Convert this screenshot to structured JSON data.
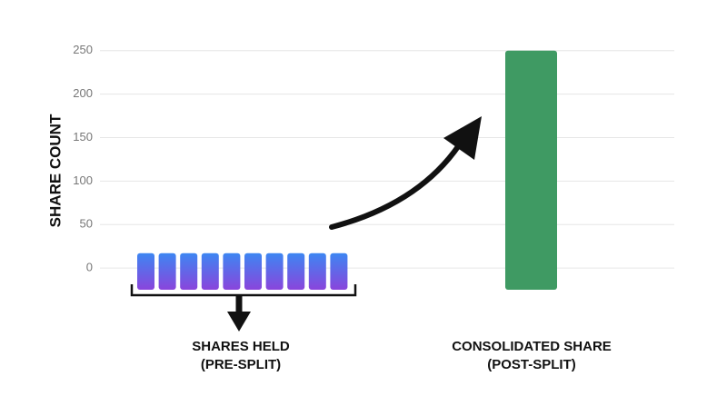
{
  "chart_data": {
    "type": "bar",
    "y_label": "SHARE COUNT",
    "categories": [
      [
        "SHARES HELD",
        "(PRE-SPLIT)"
      ],
      [
        "CONSOLIDATED SHARE",
        "(POST-SPLIT)"
      ]
    ],
    "values": [
      [
        17,
        17,
        17,
        17,
        17,
        17,
        17,
        17,
        17,
        17
      ],
      [
        250
      ]
    ],
    "colors": [
      [
        "#3d86f2",
        "#8a45dc"
      ],
      [
        "#3f9a63"
      ]
    ],
    "ylim": [
      -25,
      255
    ],
    "yticks": [
      0,
      50,
      100,
      150,
      200,
      250
    ],
    "grid": true
  }
}
